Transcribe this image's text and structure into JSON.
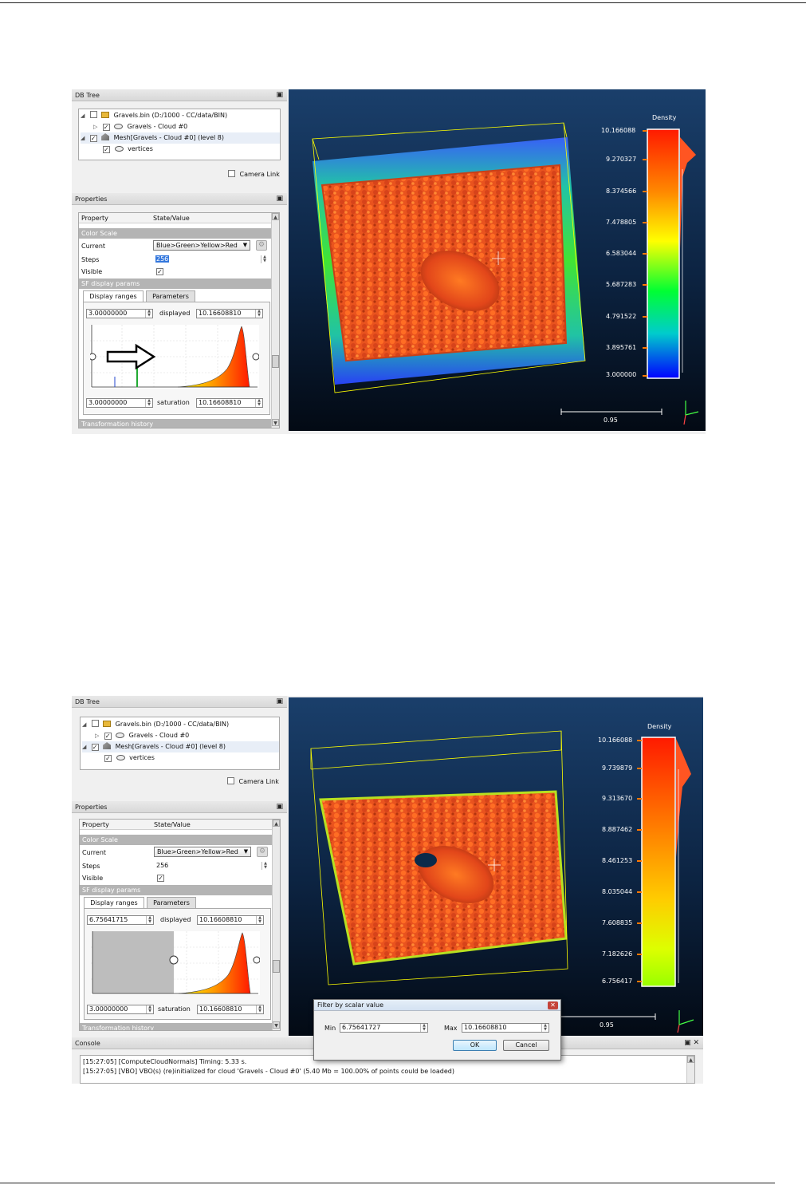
{
  "shot1": {
    "db_tree": {
      "title": "DB Tree",
      "items": [
        {
          "label": "Gravels.bin (D:/1000 - CC/data/BIN)",
          "checked": false
        },
        {
          "label": "Gravels - Cloud #0",
          "checked": true
        },
        {
          "label": "Mesh[Gravels - Cloud #0] (level 8)",
          "checked": true
        },
        {
          "label": "vertices",
          "checked": true
        }
      ],
      "camera_link": "Camera Link"
    },
    "properties": {
      "title": "Properties",
      "col_property": "Property",
      "col_value": "State/Value",
      "section_color_scale": "Color Scale",
      "current_label": "Current",
      "current_value": "Blue>Green>Yellow>Red",
      "steps_label": "Steps",
      "steps_value": "256",
      "visible_label": "Visible",
      "section_sf": "SF display params",
      "tab_display": "Display ranges",
      "tab_parameters": "Parameters",
      "displayed_min": "3.00000000",
      "displayed_label": "displayed",
      "displayed_max": "10.16608810",
      "saturation_min": "3.00000000",
      "saturation_label": "saturation",
      "saturation_max": "10.16608810",
      "transformation_history": "Transformation history"
    },
    "view": {
      "scale_title": "Density",
      "ticks": [
        "10.166088",
        "9.270327",
        "8.374566",
        "7.478805",
        "6.583044",
        "5.687283",
        "4.791522",
        "3.895761",
        "3.000000"
      ],
      "scale_bar_label": "0.95"
    }
  },
  "shot2": {
    "db_tree": {
      "title": "DB Tree",
      "items": [
        {
          "label": "Gravels.bin (D:/1000 - CC/data/BIN)",
          "checked": false
        },
        {
          "label": "Gravels - Cloud #0",
          "checked": true
        },
        {
          "label": "Mesh[Gravels - Cloud #0] (level 8)",
          "checked": true
        },
        {
          "label": "vertices",
          "checked": true
        }
      ],
      "camera_link": "Camera Link"
    },
    "properties": {
      "title": "Properties",
      "col_property": "Property",
      "col_value": "State/Value",
      "section_color_scale": "Color Scale",
      "current_label": "Current",
      "current_value": "Blue>Green>Yellow>Red",
      "steps_label": "Steps",
      "steps_value": "256",
      "visible_label": "Visible",
      "section_sf": "SF display params",
      "tab_display": "Display ranges",
      "tab_parameters": "Parameters",
      "displayed_min": "6.75641715",
      "displayed_label": "displayed",
      "displayed_max": "10.16608810",
      "saturation_min": "3.00000000",
      "saturation_label": "saturation",
      "saturation_max": "10.16608810",
      "transformation_history": "Transformation history"
    },
    "view": {
      "scale_title": "Density",
      "ticks": [
        "10.166088",
        "9.739879",
        "9.313670",
        "8.887462",
        "8.461253",
        "8.035044",
        "7.608835",
        "7.182626",
        "6.756417"
      ],
      "scale_bar_label": "0.95"
    },
    "dialog": {
      "title": "Filter by scalar value",
      "min_label": "Min",
      "min_value": "6.75641727",
      "max_label": "Max",
      "max_value": "10.16608810",
      "ok": "OK",
      "cancel": "Cancel"
    },
    "console": {
      "title": "Console",
      "lines": [
        "[15:27:05] [ComputeCloudNormals] Timing: 5.33 s.",
        "[15:27:05] [VBO] VBO(s) (re)initialized for cloud 'Gravels - Cloud #0' (5.40 Mb = 100.00% of points could be loaded)"
      ]
    }
  },
  "colors": {
    "scale_top": "#ff1a00",
    "scale_mid": "#ffff00",
    "scale_green": "#00ff00",
    "scale_bottom": "#0000ff",
    "bbox": "#ffff00"
  }
}
